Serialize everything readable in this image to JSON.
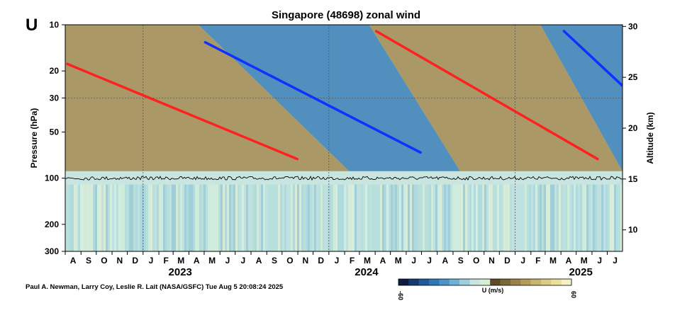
{
  "panel_label": "U",
  "credit": "Paul A. Newman, Larry Coy, Leslie R. Lait (NASA/GSFC) Tue Aug  5 20:08:24 2025",
  "colorbar": {
    "label": "U (m/s)",
    "min_label": "-60",
    "max_label": "60",
    "colors": [
      "#0d1b3e",
      "#163a70",
      "#1f5a9a",
      "#2f78b5",
      "#4a94c8",
      "#6fb0d6",
      "#9fcedf",
      "#c8e6df",
      "#d8efd6",
      "#5e4a26",
      "#7d6636",
      "#99824a",
      "#b39b5b",
      "#c9b46e",
      "#dccb83",
      "#eadf9c",
      "#f5f0c8"
    ]
  },
  "chart_data": {
    "type": "heatmap",
    "title": "Singapore (48698) zonal wind",
    "ylabel": "Pressure (hPa)",
    "y2label": "Altitude (km)",
    "yscale": "log",
    "ylim": [
      300,
      10
    ],
    "yticks": [
      "10",
      "20",
      "30",
      "50",
      "100",
      "200",
      "300"
    ],
    "y2ticks": [
      "10",
      "15",
      "20",
      "25",
      "30"
    ],
    "x_months": [
      "A",
      "S",
      "O",
      "N",
      "D",
      "J",
      "F",
      "M",
      "A",
      "M",
      "J",
      "J",
      "A",
      "S",
      "O",
      "N",
      "D",
      "J",
      "F",
      "M",
      "A",
      "M",
      "J",
      "J",
      "A",
      "S",
      "O",
      "N",
      "D",
      "J",
      "F",
      "M",
      "A",
      "M",
      "J",
      "J"
    ],
    "year_labels": [
      "2023",
      "2024",
      "2025"
    ],
    "x_range": [
      "2022-08-01",
      "2025-07-31"
    ],
    "tropopause_hPa": 100,
    "guide_lines": [
      {
        "color": "#ff2020",
        "start": {
          "date": "2022-08-05",
          "hPa": 18
        },
        "end": {
          "date": "2023-10-31",
          "hPa": 75
        }
      },
      {
        "color": "#1030ff",
        "start": {
          "date": "2023-05-03",
          "hPa": 13
        },
        "end": {
          "date": "2024-06-29",
          "hPa": 68
        }
      },
      {
        "color": "#ff2020",
        "start": {
          "date": "2024-04-03",
          "hPa": 11
        },
        "end": {
          "date": "2025-06-12",
          "hPa": 75
        }
      },
      {
        "color": "#1030ff",
        "start": {
          "date": "2025-04-07",
          "hPa": 11
        },
        "end": {
          "date": "2025-07-31",
          "hPa": 25
        }
      }
    ],
    "qbo_phases": [
      {
        "phase": "westerly",
        "top_start": "2022-08-01",
        "top_end": "2023-04-20",
        "bottom_start": "2022-08-01",
        "bottom_end": "2024-02-10"
      },
      {
        "phase": "easterly",
        "top_start": "2023-04-20",
        "top_end": "2024-03-20",
        "bottom_start": "2024-02-10",
        "bottom_end": "2024-09-15"
      },
      {
        "phase": "westerly",
        "top_start": "2024-03-20",
        "top_end": "2025-02-20",
        "bottom_start": "2024-09-15",
        "bottom_end": "2025-07-31"
      },
      {
        "phase": "easterly",
        "top_start": "2025-02-20",
        "top_end": "2025-07-31",
        "bottom_start": "2025-07-31",
        "bottom_end": "2025-07-31"
      }
    ]
  }
}
